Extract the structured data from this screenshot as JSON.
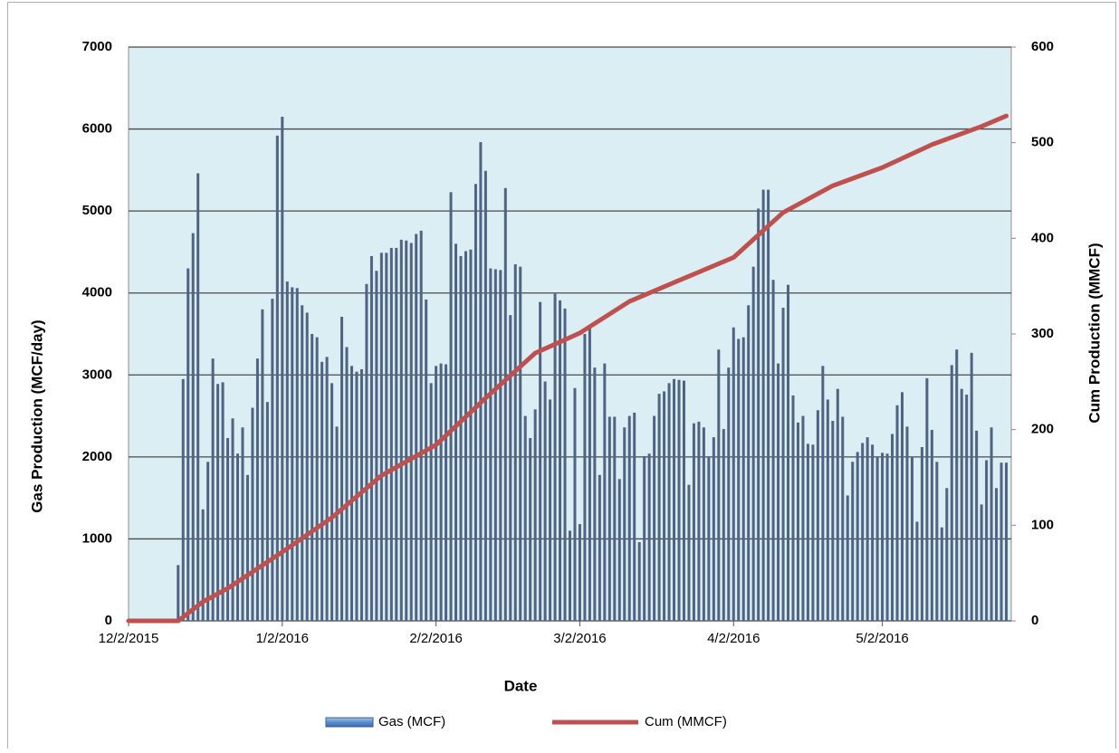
{
  "chart_data": {
    "type": "bar",
    "x_label": "Date",
    "y_label": "Gas Production (MCF/day)",
    "y2_label": "Cum Production (MMCF)",
    "xlim": [
      "12/2/2015",
      "5/28/2016"
    ],
    "xticks": [
      "12/2/2015",
      "1/2/2016",
      "2/2/2016",
      "3/2/2016",
      "4/2/2016",
      "5/2/2016"
    ],
    "ylim": [
      0,
      7000
    ],
    "yticks": [
      0,
      1000,
      2000,
      3000,
      4000,
      5000,
      6000,
      7000
    ],
    "y2lim": [
      0,
      600
    ],
    "y2ticks": [
      0,
      100,
      200,
      300,
      400,
      500,
      600
    ],
    "grid": true,
    "legend": "bottom",
    "series": [
      {
        "name": "Gas (MCF)",
        "type": "bar",
        "color": "#4f6383",
        "x": [
          "12/12/2015",
          "12/13/2015",
          "12/14/2015",
          "12/15/2015",
          "12/16/2015",
          "12/17/2015",
          "12/18/2015",
          "12/19/2015",
          "12/20/2015",
          "12/21/2015",
          "12/22/2015",
          "12/23/2015",
          "12/24/2015",
          "12/25/2015",
          "12/26/2015",
          "12/27/2015",
          "12/28/2015",
          "12/29/2015",
          "12/30/2015",
          "12/31/2015",
          "1/1/2016",
          "1/2/2016",
          "1/3/2016",
          "1/4/2016",
          "1/5/2016",
          "1/6/2016",
          "1/7/2016",
          "1/8/2016",
          "1/9/2016",
          "1/10/2016",
          "1/11/2016",
          "1/12/2016",
          "1/13/2016",
          "1/14/2016",
          "1/15/2016",
          "1/16/2016",
          "1/17/2016",
          "1/18/2016",
          "1/19/2016",
          "1/20/2016",
          "1/21/2016",
          "1/22/2016",
          "1/23/2016",
          "1/24/2016",
          "1/25/2016",
          "1/26/2016",
          "1/27/2016",
          "1/28/2016",
          "1/29/2016",
          "1/30/2016",
          "1/31/2016",
          "2/1/2016",
          "2/2/2016",
          "2/3/2016",
          "2/4/2016",
          "2/5/2016",
          "2/6/2016",
          "2/7/2016",
          "2/8/2016",
          "2/9/2016",
          "2/10/2016",
          "2/11/2016",
          "2/12/2016",
          "2/13/2016",
          "2/14/2016",
          "2/15/2016",
          "2/16/2016",
          "2/17/2016",
          "2/18/2016",
          "2/19/2016",
          "2/20/2016",
          "2/21/2016",
          "2/22/2016",
          "2/23/2016",
          "2/24/2016",
          "2/25/2016",
          "2/26/2016",
          "2/27/2016",
          "2/28/2016",
          "2/29/2016",
          "3/1/2016",
          "3/2/2016",
          "3/3/2016",
          "3/4/2016",
          "3/5/2016",
          "3/6/2016",
          "3/7/2016",
          "3/8/2016",
          "3/9/2016",
          "3/10/2016",
          "3/11/2016",
          "3/12/2016",
          "3/13/2016",
          "3/14/2016",
          "3/15/2016",
          "3/16/2016",
          "3/17/2016",
          "3/18/2016",
          "3/19/2016",
          "3/20/2016",
          "3/21/2016",
          "3/22/2016",
          "3/23/2016",
          "3/24/2016",
          "3/25/2016",
          "3/26/2016",
          "3/27/2016",
          "3/28/2016",
          "3/29/2016",
          "3/30/2016",
          "3/31/2016",
          "4/1/2016",
          "4/2/2016",
          "4/3/2016",
          "4/4/2016",
          "4/5/2016",
          "4/6/2016",
          "4/7/2016",
          "4/8/2016",
          "4/9/2016",
          "4/10/2016",
          "4/11/2016",
          "4/12/2016",
          "4/13/2016",
          "4/14/2016",
          "4/15/2016",
          "4/16/2016",
          "4/17/2016",
          "4/18/2016",
          "4/19/2016",
          "4/20/2016",
          "4/21/2016",
          "4/22/2016",
          "4/23/2016",
          "4/24/2016",
          "4/25/2016",
          "4/26/2016",
          "4/27/2016",
          "4/28/2016",
          "4/29/2016",
          "4/30/2016",
          "5/1/2016",
          "5/2/2016",
          "5/3/2016",
          "5/4/2016",
          "5/5/2016",
          "5/6/2016",
          "5/7/2016",
          "5/8/2016",
          "5/9/2016",
          "5/10/2016",
          "5/11/2016",
          "5/12/2016",
          "5/13/2016",
          "5/14/2016",
          "5/15/2016",
          "5/16/2016",
          "5/17/2016",
          "5/18/2016",
          "5/19/2016",
          "5/20/2016",
          "5/21/2016",
          "5/22/2016",
          "5/23/2016",
          "5/24/2016",
          "5/25/2016",
          "5/26/2016",
          "5/27/2016"
        ],
        "values": [
          680,
          2950,
          4300,
          4730,
          5460,
          1360,
          1940,
          3200,
          2890,
          2910,
          2230,
          2470,
          2040,
          2360,
          1780,
          2600,
          3200,
          3800,
          2670,
          3930,
          5920,
          6150,
          4140,
          4070,
          4060,
          3850,
          3760,
          3500,
          3460,
          3160,
          3220,
          2900,
          2370,
          3710,
          3340,
          3110,
          3040,
          3070,
          4110,
          4450,
          4270,
          4490,
          4490,
          4550,
          4550,
          4650,
          4640,
          4610,
          4720,
          4760,
          3920,
          2900,
          3110,
          3140,
          3130,
          5230,
          4600,
          4450,
          4510,
          4530,
          5330,
          5840,
          5490,
          4300,
          4290,
          4280,
          5280,
          3730,
          4350,
          4320,
          2500,
          2230,
          2580,
          3890,
          2920,
          2700,
          3990,
          3910,
          3810,
          1100,
          2840,
          1180,
          3500,
          3600,
          3090,
          1780,
          3140,
          2490,
          2490,
          1730,
          2360,
          2500,
          2540,
          960,
          2010,
          2040,
          2500,
          2770,
          2800,
          2900,
          2950,
          2940,
          2930,
          1660,
          2410,
          2430,
          2360,
          2000,
          2240,
          3310,
          2340,
          3090,
          3580,
          3440,
          3460,
          3850,
          4320,
          5030,
          5260,
          5260,
          4160,
          3140,
          3820,
          4100,
          2750,
          2420,
          2500,
          2160,
          2150,
          2570,
          3110,
          2700,
          2440,
          2830,
          2490,
          1530,
          1940,
          2060,
          2170,
          2240,
          2150,
          2000,
          2050,
          2040,
          2280,
          2630,
          2790,
          2370,
          2000,
          1210,
          2120,
          2960,
          2330,
          1940,
          1140,
          1620,
          3120,
          3310,
          2830,
          2760,
          3270,
          2320,
          1420,
          1960,
          2360,
          1620,
          1930,
          1930
        ]
      },
      {
        "name": "Cum (MMCF)",
        "type": "line",
        "axis": "y2",
        "color": "#c0504d",
        "x": [
          "12/2/2015",
          "12/12/2015",
          "12/17/2015",
          "12/22/2015",
          "1/2/2016",
          "1/12/2016",
          "1/22/2016",
          "2/2/2016",
          "2/12/2016",
          "2/22/2016",
          "3/2/2016",
          "3/12/2016",
          "3/22/2016",
          "4/2/2016",
          "4/12/2016",
          "4/22/2016",
          "5/2/2016",
          "5/12/2016",
          "5/22/2016",
          "5/27/2016"
        ],
        "values": [
          0,
          0,
          20,
          34,
          72,
          108,
          152,
          184,
          233,
          280,
          301,
          334,
          356,
          380,
          427,
          455,
          474,
          498,
          517,
          528
        ]
      }
    ]
  }
}
